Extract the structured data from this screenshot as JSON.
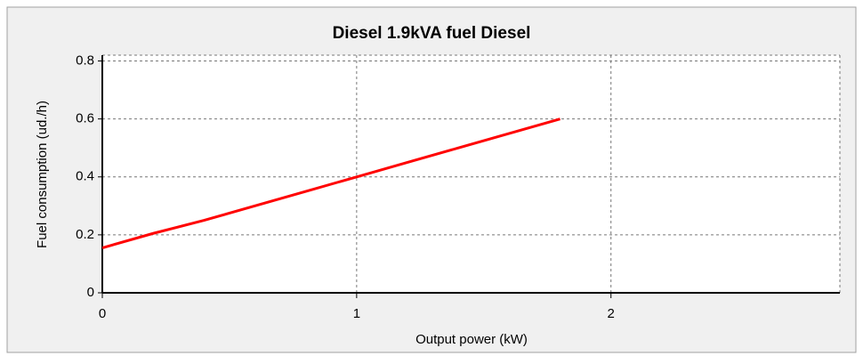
{
  "chart_data": {
    "type": "line",
    "title": "Diesel 1.9kVA fuel Diesel",
    "x_label": "Output power (kW)",
    "y_label": "Fuel consumption (ud./h)",
    "x": [
      0,
      0.2,
      0.4,
      0.6,
      0.8,
      1.0,
      1.2,
      1.4,
      1.6,
      1.8
    ],
    "series": [
      {
        "name": "Fuel consumption",
        "color": "#ff0000",
        "values": [
          0.155,
          0.205,
          0.25,
          0.3,
          0.35,
          0.4,
          0.45,
          0.5,
          0.55,
          0.6
        ]
      }
    ],
    "xlim": [
      0,
      2.9
    ],
    "ylim": [
      0,
      0.82
    ],
    "xticks": [
      0,
      1,
      2
    ],
    "yticks": [
      0,
      0.2,
      0.4,
      0.6,
      0.8
    ],
    "grid": true
  }
}
